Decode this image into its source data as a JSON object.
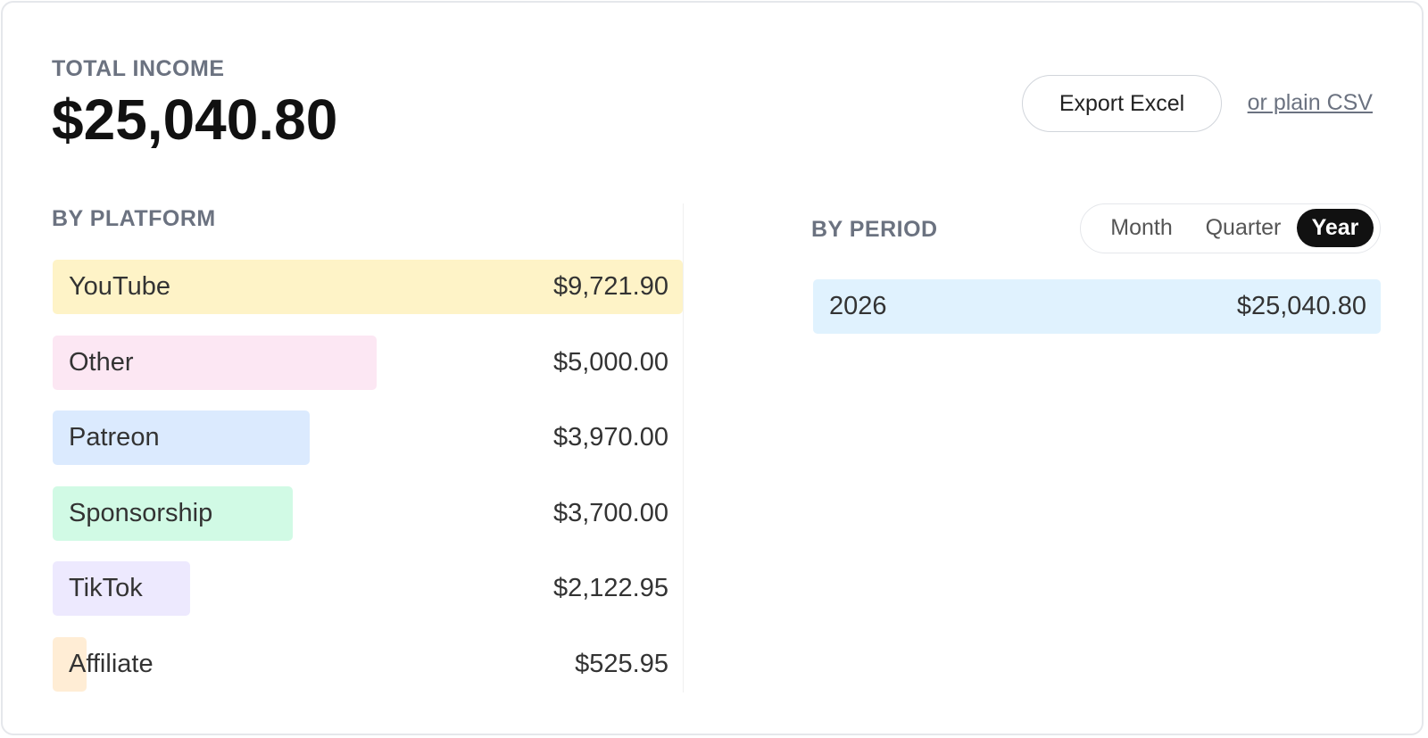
{
  "header": {
    "title": "TOTAL INCOME",
    "total": "$25,040.80",
    "export_button": "Export Excel",
    "csv_link": "or plain CSV"
  },
  "by_platform": {
    "title": "BY PLATFORM",
    "rows": [
      {
        "name": "YouTube",
        "value": 9721.9,
        "label": "$9,721.90",
        "color": "#fef3c7"
      },
      {
        "name": "Other",
        "value": 5000.0,
        "label": "$5,000.00",
        "color": "#fce7f3"
      },
      {
        "name": "Patreon",
        "value": 3970.0,
        "label": "$3,970.00",
        "color": "#dbeafe"
      },
      {
        "name": "Sponsorship",
        "value": 3700.0,
        "label": "$3,700.00",
        "color": "#d1fae5"
      },
      {
        "name": "TikTok",
        "value": 2122.95,
        "label": "$2,122.95",
        "color": "#ede9fe"
      },
      {
        "name": "Affiliate",
        "value": 525.95,
        "label": "$525.95",
        "color": "#ffedd5"
      }
    ]
  },
  "by_period": {
    "title": "BY PERIOD",
    "toggle": [
      "Month",
      "Quarter",
      "Year"
    ],
    "active": 2,
    "rows": [
      {
        "name": "2026",
        "value": 25040.8,
        "label": "$25,040.80",
        "color": "#e0f2fe"
      }
    ]
  }
}
